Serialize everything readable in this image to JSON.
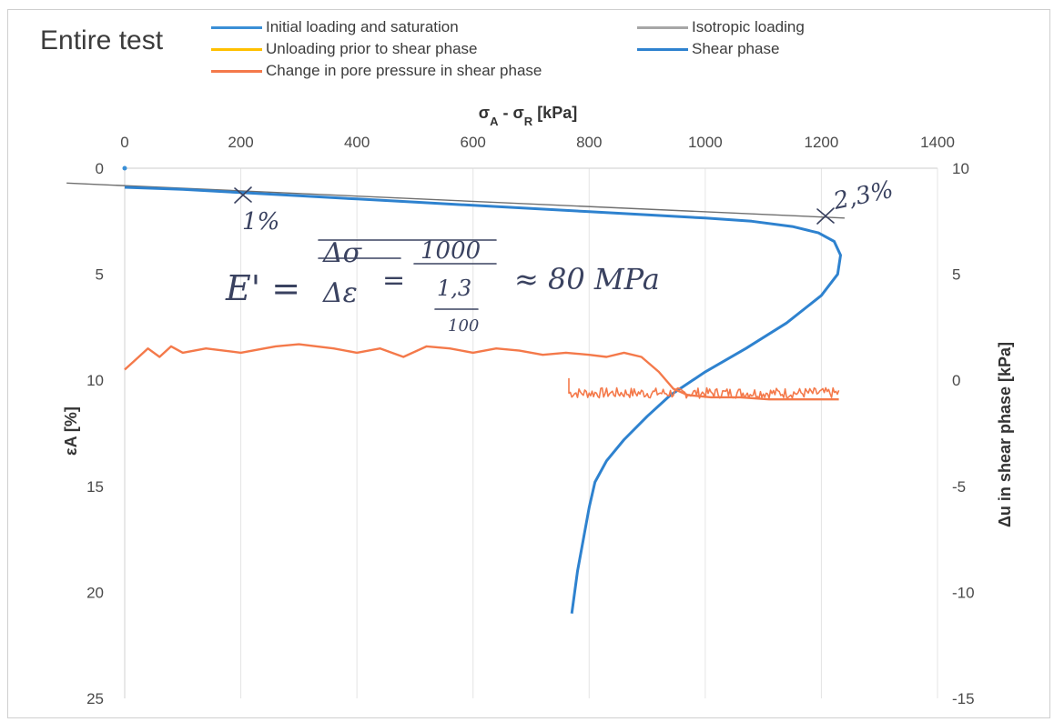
{
  "chart_data": {
    "type": "line",
    "title": "Entire test",
    "x_top_label_html": "σ<tspan baseline-shift='sub' font-size='13'>A</tspan> - σ<tspan baseline-shift='sub' font-size='13'>R</tspan> [kPa]",
    "x_top_label_text": "σA - σR [kPa]",
    "y_left_label": "εA [%]",
    "y_right_label": "Δu in shear phase [kPa]",
    "x_range": [
      0,
      1400
    ],
    "y_left_range": [
      0,
      25
    ],
    "y_right_range": [
      -15,
      10
    ],
    "x_ticks": [
      "0",
      "200",
      "400",
      "600",
      "800",
      "1000",
      "1200",
      "1400"
    ],
    "y_left_ticks": [
      "0",
      "5",
      "10",
      "15",
      "20",
      "25"
    ],
    "y_right_ticks": [
      "10",
      "5",
      "0",
      "-5",
      "-10",
      "-15"
    ],
    "legend": [
      {
        "name": "Initial loading and saturation",
        "color": "#3a8fd6"
      },
      {
        "name": "Isotropic loading",
        "color": "#a6a6a6"
      },
      {
        "name": "Unloading prior to shear phase",
        "color": "#ffc000"
      },
      {
        "name": "Shear phase",
        "color": "#2e82cf"
      },
      {
        "name": "Change in pore pressure in shear phase",
        "color": "#f4794a"
      }
    ],
    "series": [
      {
        "name": "Initial loading and saturation",
        "axis": "left",
        "points": [
          [
            0,
            0
          ],
          [
            2,
            0.05
          ]
        ]
      },
      {
        "name": "Shear phase",
        "axis": "left",
        "points": [
          [
            0,
            0.9
          ],
          [
            100,
            1.0
          ],
          [
            200,
            1.15
          ],
          [
            300,
            1.3
          ],
          [
            400,
            1.45
          ],
          [
            500,
            1.6
          ],
          [
            600,
            1.75
          ],
          [
            700,
            1.9
          ],
          [
            800,
            2.05
          ],
          [
            900,
            2.2
          ],
          [
            1000,
            2.35
          ],
          [
            1080,
            2.5
          ],
          [
            1150,
            2.75
          ],
          [
            1195,
            3.05
          ],
          [
            1222,
            3.45
          ],
          [
            1233,
            4.1
          ],
          [
            1228,
            5.0
          ],
          [
            1200,
            6.0
          ],
          [
            1140,
            7.3
          ],
          [
            1070,
            8.5
          ],
          [
            1000,
            9.6
          ],
          [
            940,
            10.7
          ],
          [
            900,
            11.7
          ],
          [
            860,
            12.8
          ],
          [
            830,
            13.8
          ],
          [
            810,
            14.8
          ],
          [
            800,
            16.0
          ],
          [
            790,
            17.5
          ],
          [
            780,
            19.0
          ],
          [
            770,
            21.0
          ]
        ]
      },
      {
        "name": "Change in pore pressure in shear phase",
        "axis": "right",
        "points": [
          [
            0,
            0.5
          ],
          [
            20,
            1.0
          ],
          [
            40,
            1.5
          ],
          [
            60,
            1.1
          ],
          [
            80,
            1.6
          ],
          [
            100,
            1.3
          ],
          [
            140,
            1.5
          ],
          [
            200,
            1.3
          ],
          [
            260,
            1.6
          ],
          [
            300,
            1.7
          ],
          [
            360,
            1.5
          ],
          [
            400,
            1.3
          ],
          [
            440,
            1.5
          ],
          [
            480,
            1.1
          ],
          [
            520,
            1.6
          ],
          [
            560,
            1.5
          ],
          [
            600,
            1.3
          ],
          [
            640,
            1.5
          ],
          [
            680,
            1.4
          ],
          [
            720,
            1.2
          ],
          [
            760,
            1.3
          ],
          [
            800,
            1.2
          ],
          [
            830,
            1.1
          ],
          [
            860,
            1.3
          ],
          [
            890,
            1.1
          ],
          [
            920,
            0.4
          ],
          [
            945,
            -0.4
          ],
          [
            970,
            -0.7
          ],
          [
            1010,
            -0.8
          ],
          [
            1060,
            -0.8
          ],
          [
            1110,
            -0.9
          ],
          [
            1160,
            -0.9
          ],
          [
            1200,
            -0.9
          ],
          [
            1230,
            -0.9
          ]
        ]
      },
      {
        "name": "Change in pore pressure in shear phase (noisy branch)",
        "axis": "right",
        "noisy": true,
        "x_from": 765,
        "x_to": 1230,
        "y_center": -0.6,
        "amplitude": 0.25
      }
    ],
    "grid": "vertical",
    "annotations": {
      "strain_1": "1%",
      "strain_2": "2,3%",
      "formula_lhs": "E' =",
      "formula_frac1_num": "Δσ",
      "formula_frac1_den": "Δε",
      "formula_eq": "=",
      "formula_frac2_num": "1000",
      "formula_frac2_den": "1,3",
      "formula_frac2_den2": "100",
      "formula_result": "≈ 80 MPa"
    }
  }
}
